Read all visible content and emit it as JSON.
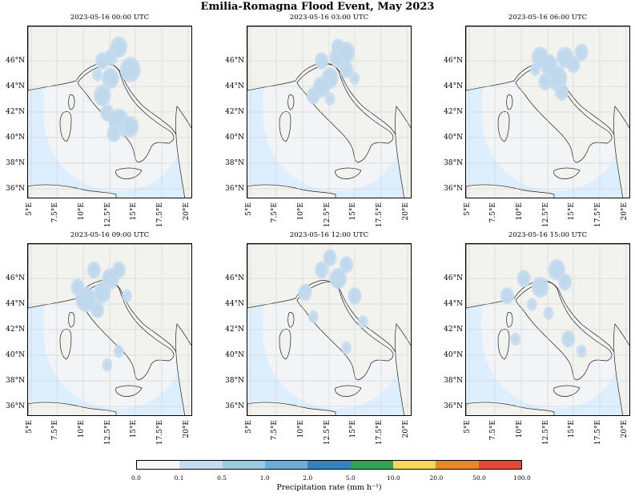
{
  "title": "Emilia-Romagna Flood Event, May 2023",
  "panels": [
    {
      "title": "2023-05-16 00:00 UTC",
      "cells": [
        [
          0.55,
          0.12,
          4
        ],
        [
          0.62,
          0.25,
          5
        ],
        [
          0.5,
          0.3,
          4
        ],
        [
          0.45,
          0.4,
          4
        ],
        [
          0.48,
          0.5,
          3
        ],
        [
          0.55,
          0.55,
          5
        ],
        [
          0.45,
          0.2,
          3
        ],
        [
          0.5,
          0.18,
          3
        ],
        [
          0.42,
          0.28,
          2
        ],
        [
          0.58,
          0.6,
          2
        ],
        [
          0.52,
          0.62,
          3
        ],
        [
          0.62,
          0.58,
          4
        ]
      ]
    },
    {
      "title": "2023-05-16 03:00 UTC",
      "cells": [
        [
          0.45,
          0.2,
          3
        ],
        [
          0.5,
          0.3,
          4
        ],
        [
          0.55,
          0.18,
          4
        ],
        [
          0.6,
          0.25,
          3
        ],
        [
          0.45,
          0.35,
          4
        ],
        [
          0.4,
          0.4,
          3
        ],
        [
          0.55,
          0.12,
          3
        ],
        [
          0.6,
          0.15,
          4
        ],
        [
          0.5,
          0.42,
          2
        ],
        [
          0.65,
          0.3,
          2
        ]
      ]
    },
    {
      "title": "2023-05-16 06:00 UTC",
      "cells": [
        [
          0.45,
          0.18,
          4
        ],
        [
          0.5,
          0.22,
          4
        ],
        [
          0.55,
          0.3,
          5
        ],
        [
          0.6,
          0.18,
          4
        ],
        [
          0.65,
          0.22,
          3
        ],
        [
          0.7,
          0.15,
          3
        ],
        [
          0.48,
          0.32,
          3
        ],
        [
          0.58,
          0.38,
          3
        ],
        [
          0.42,
          0.25,
          2
        ]
      ]
    },
    {
      "title": "2023-05-16 09:00 UTC",
      "cells": [
        [
          0.4,
          0.15,
          3
        ],
        [
          0.45,
          0.28,
          4
        ],
        [
          0.35,
          0.32,
          5
        ],
        [
          0.5,
          0.2,
          4
        ],
        [
          0.55,
          0.15,
          3
        ],
        [
          0.3,
          0.25,
          3
        ],
        [
          0.6,
          0.3,
          2
        ],
        [
          0.55,
          0.62,
          2
        ],
        [
          0.42,
          0.38,
          3
        ],
        [
          0.48,
          0.7,
          2
        ]
      ]
    },
    {
      "title": "2023-05-16 12:00 UTC",
      "cells": [
        [
          0.45,
          0.15,
          3
        ],
        [
          0.55,
          0.2,
          4
        ],
        [
          0.6,
          0.12,
          3
        ],
        [
          0.65,
          0.3,
          3
        ],
        [
          0.35,
          0.28,
          3
        ],
        [
          0.4,
          0.42,
          2
        ],
        [
          0.7,
          0.45,
          2
        ],
        [
          0.6,
          0.6,
          2
        ],
        [
          0.5,
          0.08,
          3
        ]
      ]
    },
    {
      "title": "2023-05-16 15:00 UTC",
      "cells": [
        [
          0.35,
          0.2,
          3
        ],
        [
          0.45,
          0.25,
          4
        ],
        [
          0.55,
          0.15,
          4
        ],
        [
          0.6,
          0.22,
          3
        ],
        [
          0.25,
          0.3,
          3
        ],
        [
          0.4,
          0.35,
          2
        ],
        [
          0.5,
          0.4,
          2
        ],
        [
          0.62,
          0.55,
          3
        ],
        [
          0.7,
          0.62,
          2
        ],
        [
          0.3,
          0.55,
          2
        ]
      ]
    }
  ],
  "lat_labels": [
    "46°N",
    "44°N",
    "42°N",
    "40°N",
    "38°N",
    "36°N"
  ],
  "lon_labels": [
    "5°E",
    "7.5°E",
    "10°E",
    "12.5°E",
    "15°E",
    "17.5°E",
    "20°E"
  ],
  "colorbar": {
    "label": "Precipitation rate (mm h⁻¹)",
    "ticks": [
      "0.0",
      "0.1",
      "0.5",
      "1.0",
      "2.0",
      "5.0",
      "10.0",
      "20.0",
      "50.0",
      "100.0"
    ],
    "colors": [
      "#f7f7f7",
      "#c6dbef",
      "#9ecae1",
      "#6baed6",
      "#3182bd",
      "#31a354",
      "#f6d860",
      "#e8862a",
      "#e34a33"
    ]
  }
}
